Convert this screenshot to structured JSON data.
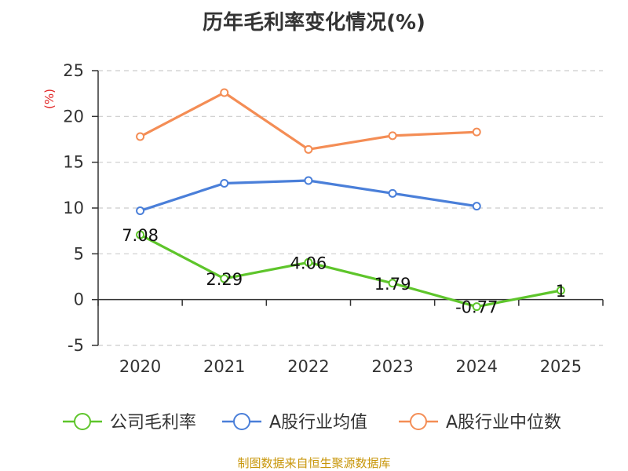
{
  "chart_data": {
    "type": "line",
    "title": "历年毛利率变化情况(%)",
    "ylabel": "(%)",
    "xlabel": "",
    "categories": [
      "2020",
      "2021",
      "2022",
      "2023",
      "2024",
      "2025"
    ],
    "ylim": [
      -5,
      25
    ],
    "yticks": [
      -5,
      0,
      5,
      10,
      15,
      20,
      25
    ],
    "grid": true,
    "legend_position": "bottom",
    "series": [
      {
        "name": "公司毛利率",
        "color": "#5ec52b",
        "values": [
          7.08,
          2.29,
          4.06,
          1.79,
          -0.77,
          1
        ],
        "labels": [
          "7.08",
          "2.29",
          "4.06",
          "1.79",
          "-0.77",
          "1"
        ]
      },
      {
        "name": "A股行业均值",
        "color": "#4a7fd9",
        "values": [
          9.7,
          12.7,
          13.0,
          11.6,
          10.2,
          null
        ]
      },
      {
        "name": "A股行业中位数",
        "color": "#f48d55",
        "values": [
          17.8,
          22.6,
          16.4,
          17.9,
          18.3,
          null
        ]
      }
    ]
  },
  "footer": {
    "source": "制图数据来自恒生聚源数据库"
  },
  "colors": {
    "unit_label": "#e02020",
    "grid": "#cccccc",
    "axis": "#333333"
  }
}
